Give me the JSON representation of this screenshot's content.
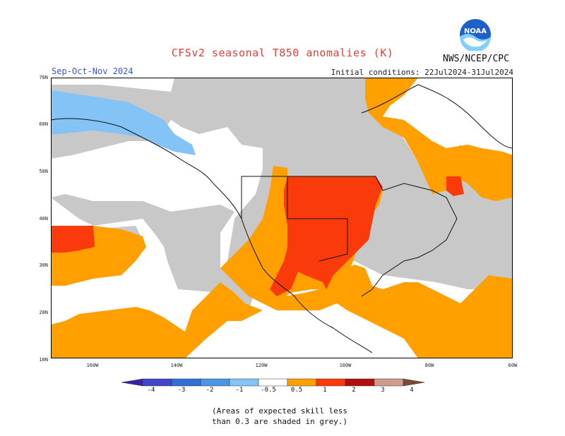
{
  "header": {
    "title": "CFSv2 seasonal T850 anomalies (K)",
    "season": "Sep-Oct-Nov 2024",
    "initial_conditions": "Initial conditions: 22Jul2024-31Jul2024",
    "agency": "NWS/NCEP/CPC",
    "logo_text": "NOAA"
  },
  "axes": {
    "lat_labels": [
      "70N",
      "60N",
      "50N",
      "40N",
      "30N",
      "20N",
      "10N"
    ],
    "lon_labels": [
      "160W",
      "140W",
      "120W",
      "100W",
      "80W",
      "60W"
    ]
  },
  "legend": {
    "labels": [
      "-4",
      "-3",
      "-2",
      "-1",
      "-0.5",
      "0.5",
      "1",
      "2",
      "3",
      "4"
    ],
    "colors": [
      "#3a1fa8",
      "#3f46c9",
      "#2f6fd6",
      "#4a95e6",
      "#83c3f5",
      "#ffffff",
      "#ffa000",
      "#fb3a0c",
      "#b30d0d",
      "#cc9c8c",
      "#7a4a3a"
    ],
    "skill_mask_color": "#c8c8c8"
  },
  "note": {
    "line1": "(Areas of expected skill less",
    "line2": "than 0.3 are shaded in grey.)"
  }
}
